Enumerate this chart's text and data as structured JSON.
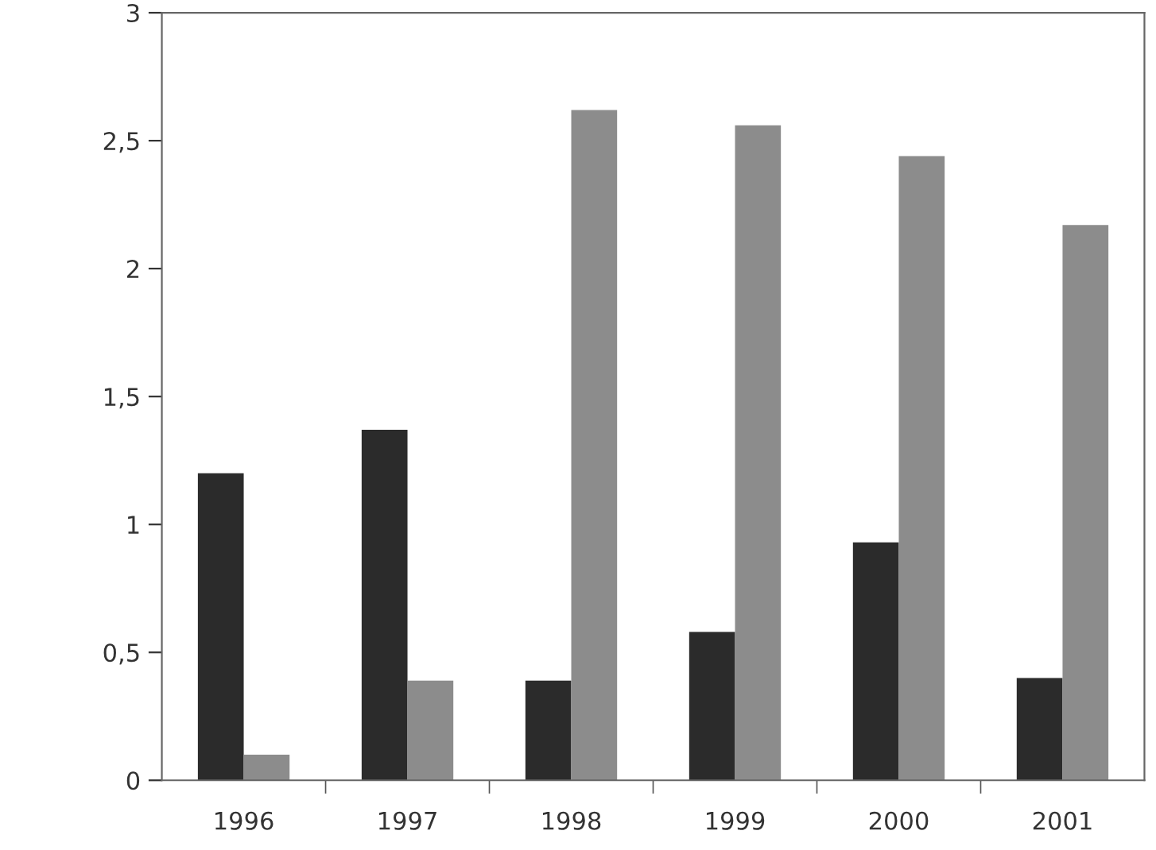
{
  "chart_data": {
    "type": "bar",
    "categories": [
      "1996",
      "1997",
      "1998",
      "1999",
      "2000",
      "2001"
    ],
    "series": [
      {
        "color": "#2b2b2b",
        "values": [
          1.2,
          1.37,
          0.39,
          0.58,
          0.93,
          0.4
        ]
      },
      {
        "color": "#8c8c8c",
        "values": [
          0.1,
          0.39,
          2.62,
          2.56,
          2.44,
          2.17
        ]
      }
    ],
    "ylim": [
      0,
      3
    ],
    "yticks": [
      0,
      {
        "value": 0.5,
        "label": "0,5"
      },
      1,
      {
        "value": 1.5,
        "label": "1,5"
      },
      2,
      {
        "value": 2.5,
        "label": "2,5"
      },
      3
    ],
    "grid": false,
    "legend": false
  }
}
